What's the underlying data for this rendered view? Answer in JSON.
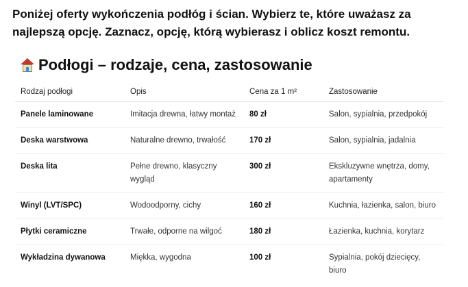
{
  "intro": "Poniżej oferty wykończenia podłóg i ścian. Wybierz te, które uważasz za najlepszą opcję. Zaznacz, opcję, którą wybierasz i oblicz koszt remontu.",
  "section": {
    "icon": "house-icon",
    "title": "Podłogi – rodzaje, cena, zastosowanie"
  },
  "table": {
    "headers": [
      "Rodzaj podłogi",
      "Opis",
      "Cena za 1 m²",
      "Zastosowanie"
    ],
    "rows": [
      [
        "Panele laminowane",
        "Imitacja drewna, łatwy montaż",
        "80 zł",
        "Salon, sypialnia, przedpokój"
      ],
      [
        "Deska warstwowa",
        "Naturalne drewno, trwałość",
        "170 zł",
        "Salon, sypialnia, jadalnia"
      ],
      [
        "Deska lita",
        "Pełne drewno, klasyczny wygląd",
        "300 zł",
        "Ekskluzywne wnętrza, domy, apartamenty"
      ],
      [
        "Winyl (LVT/SPC)",
        "Wodoodporny, cichy",
        "160 zł",
        "Kuchnia, łazienka, salon, biuro"
      ],
      [
        "Płytki ceramiczne",
        "Trwałe, odporne na wilgoć",
        "180 zł",
        "Łazienka, kuchnia, korytarz"
      ],
      [
        "Wykładzina dywanowa",
        "Miękka, wygodna",
        "100 zł",
        "Sypialnia, pokój dziecięcy, biuro"
      ]
    ]
  }
}
